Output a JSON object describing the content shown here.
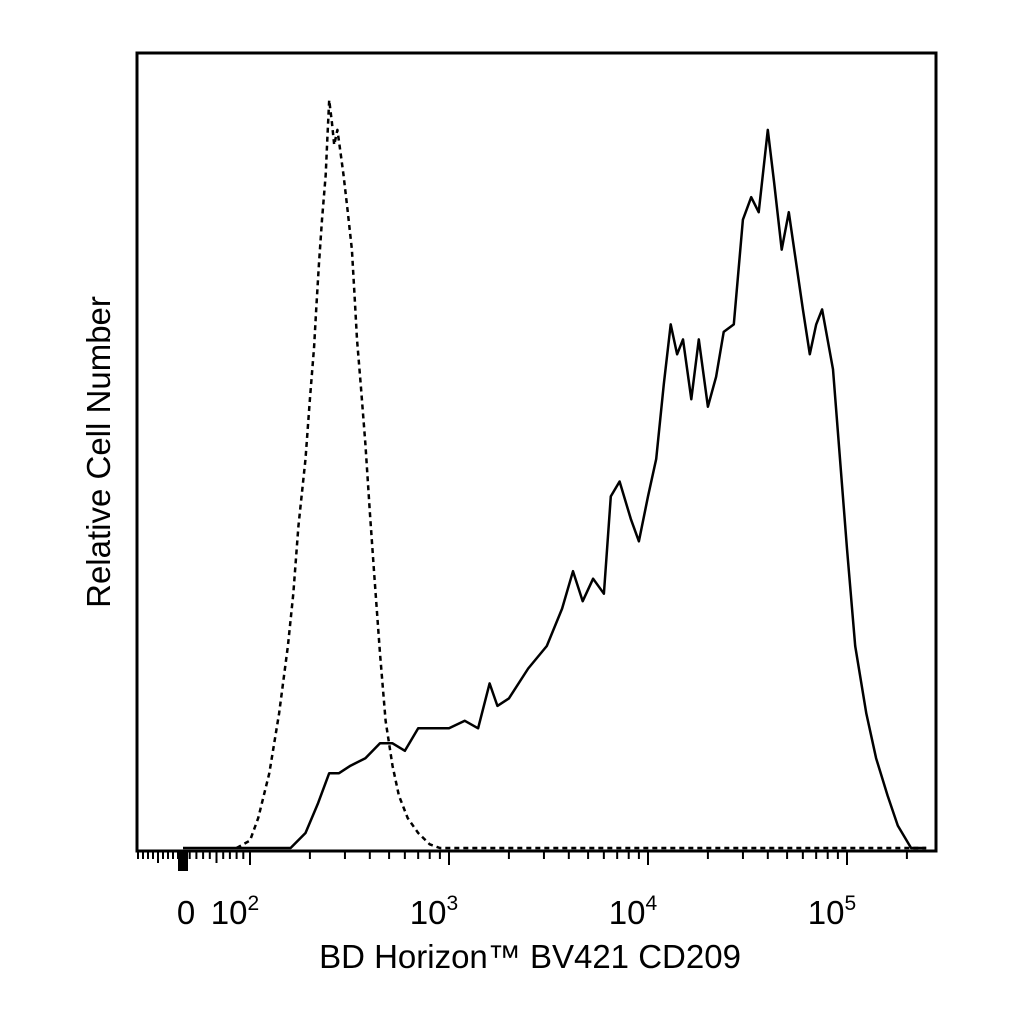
{
  "chart_data": {
    "type": "line",
    "title": "",
    "xlabel": "BD Horizon™ BV421 CD209",
    "ylabel": "Relative Cell Number",
    "x_scale": "biexponential",
    "xlim": [
      -60,
      250000
    ],
    "ylim": [
      0,
      1
    ],
    "grid": false,
    "legend": "none",
    "x_tick_labels": [
      {
        "value": 0,
        "base": "0",
        "sup": ""
      },
      {
        "value": 100,
        "base": "10",
        "sup": "2"
      },
      {
        "value": 1000,
        "base": "10",
        "sup": "3"
      },
      {
        "value": 10000,
        "base": "10",
        "sup": "4"
      },
      {
        "value": 100000,
        "base": "10",
        "sup": "5"
      }
    ],
    "series": [
      {
        "style": "dashed",
        "points": [
          [
            80,
            0
          ],
          [
            100,
            0.01
          ],
          [
            110,
            0.04
          ],
          [
            125,
            0.1
          ],
          [
            140,
            0.18
          ],
          [
            155,
            0.27
          ],
          [
            165,
            0.34
          ],
          [
            175,
            0.43
          ],
          [
            190,
            0.52
          ],
          [
            200,
            0.6
          ],
          [
            210,
            0.67
          ],
          [
            215,
            0.72
          ],
          [
            222,
            0.78
          ],
          [
            230,
            0.84
          ],
          [
            240,
            0.9
          ],
          [
            245,
            0.95
          ],
          [
            250,
            1.0
          ],
          [
            258,
            0.97
          ],
          [
            265,
            0.94
          ],
          [
            275,
            0.96
          ],
          [
            285,
            0.93
          ],
          [
            295,
            0.9
          ],
          [
            310,
            0.85
          ],
          [
            325,
            0.8
          ],
          [
            335,
            0.74
          ],
          [
            345,
            0.68
          ],
          [
            360,
            0.62
          ],
          [
            380,
            0.54
          ],
          [
            400,
            0.45
          ],
          [
            420,
            0.37
          ],
          [
            450,
            0.26
          ],
          [
            480,
            0.17
          ],
          [
            520,
            0.11
          ],
          [
            560,
            0.07
          ],
          [
            620,
            0.04
          ],
          [
            700,
            0.02
          ],
          [
            800,
            0.005
          ],
          [
            900,
            0.0
          ],
          [
            250000,
            0.0
          ]
        ]
      },
      {
        "style": "solid",
        "points": [
          [
            0,
            0
          ],
          [
            160,
            0
          ],
          [
            190,
            0.02
          ],
          [
            220,
            0.06
          ],
          [
            250,
            0.1
          ],
          [
            280,
            0.1
          ],
          [
            320,
            0.11
          ],
          [
            380,
            0.12
          ],
          [
            450,
            0.14
          ],
          [
            520,
            0.14
          ],
          [
            600,
            0.13
          ],
          [
            700,
            0.16
          ],
          [
            850,
            0.16
          ],
          [
            1000,
            0.16
          ],
          [
            1200,
            0.17
          ],
          [
            1400,
            0.16
          ],
          [
            1600,
            0.22
          ],
          [
            1750,
            0.19
          ],
          [
            2000,
            0.2
          ],
          [
            2500,
            0.24
          ],
          [
            3100,
            0.27
          ],
          [
            3700,
            0.32
          ],
          [
            4200,
            0.37
          ],
          [
            4700,
            0.33
          ],
          [
            5300,
            0.36
          ],
          [
            6000,
            0.34
          ],
          [
            6500,
            0.47
          ],
          [
            7200,
            0.49
          ],
          [
            8200,
            0.44
          ],
          [
            9000,
            0.41
          ],
          [
            10000,
            0.47
          ],
          [
            11000,
            0.52
          ],
          [
            12000,
            0.62
          ],
          [
            13000,
            0.7
          ],
          [
            14000,
            0.66
          ],
          [
            15000,
            0.68
          ],
          [
            16500,
            0.6
          ],
          [
            18000,
            0.68
          ],
          [
            20000,
            0.59
          ],
          [
            22000,
            0.63
          ],
          [
            24000,
            0.69
          ],
          [
            27000,
            0.7
          ],
          [
            30000,
            0.84
          ],
          [
            33000,
            0.87
          ],
          [
            36000,
            0.85
          ],
          [
            40000,
            0.96
          ],
          [
            43000,
            0.89
          ],
          [
            47000,
            0.8
          ],
          [
            51000,
            0.85
          ],
          [
            55000,
            0.79
          ],
          [
            60000,
            0.72
          ],
          [
            65000,
            0.66
          ],
          [
            70000,
            0.7
          ],
          [
            75000,
            0.72
          ],
          [
            85000,
            0.64
          ],
          [
            100000,
            0.4
          ],
          [
            110000,
            0.27
          ],
          [
            125000,
            0.18
          ],
          [
            140000,
            0.12
          ],
          [
            160000,
            0.07
          ],
          [
            180000,
            0.03
          ],
          [
            210000,
            0.0
          ],
          [
            250000,
            0.0
          ]
        ]
      }
    ]
  }
}
